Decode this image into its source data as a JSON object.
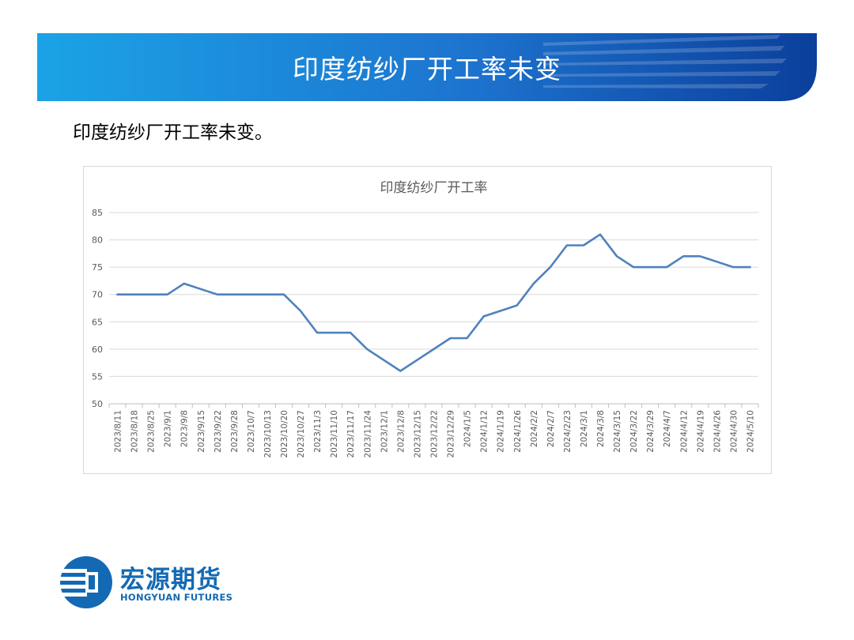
{
  "header": {
    "title": "印度纺纱厂开工率未变"
  },
  "subtitle": "印度纺纱厂开工率未变。",
  "logo": {
    "name_cn": "宏源期货",
    "name_en": "HONGYUAN FUTURES",
    "icon": "hongyuan-logo-icon"
  },
  "colors": {
    "banner_light": "#1ba3e6",
    "banner_dark": "#0b3f9c",
    "series": "#4f81bd",
    "brand": "#1369b3"
  },
  "chart_data": {
    "type": "line",
    "title": "印度纺纱厂开工率",
    "xlabel": "",
    "ylabel": "",
    "ylim": [
      50,
      85
    ],
    "yticks": [
      50,
      55,
      60,
      65,
      70,
      75,
      80,
      85
    ],
    "grid": true,
    "legend": "none",
    "categories": [
      "2023/8/11",
      "2023/8/18",
      "2023/8/25",
      "2023/9/1",
      "2023/9/8",
      "2023/9/15",
      "2023/9/22",
      "2023/9/28",
      "2023/10/7",
      "2023/10/13",
      "2023/10/20",
      "2023/10/27",
      "2023/11/3",
      "2023/11/10",
      "2023/11/17",
      "2023/11/24",
      "2023/12/1",
      "2023/12/8",
      "2023/12/15",
      "2023/12/22",
      "2023/12/29",
      "2024/1/5",
      "2024/1/12",
      "2024/1/19",
      "2024/1/26",
      "2024/2/2",
      "2024/2/7",
      "2024/2/23",
      "2024/3/1",
      "2024/3/8",
      "2024/3/15",
      "2024/3/22",
      "2024/3/29",
      "2024/4/7",
      "2024/4/12",
      "2024/4/19",
      "2024/4/26",
      "2024/4/30",
      "2024/5/10"
    ],
    "series": [
      {
        "values": [
          70,
          70,
          70,
          70,
          72,
          71,
          70,
          70,
          70,
          70,
          70,
          67,
          63,
          63,
          63,
          60,
          58,
          56,
          58,
          60,
          62,
          62,
          66,
          67,
          68,
          72,
          75,
          79,
          79,
          81,
          77,
          75,
          75,
          75,
          77,
          77,
          76,
          75,
          75
        ]
      }
    ]
  }
}
